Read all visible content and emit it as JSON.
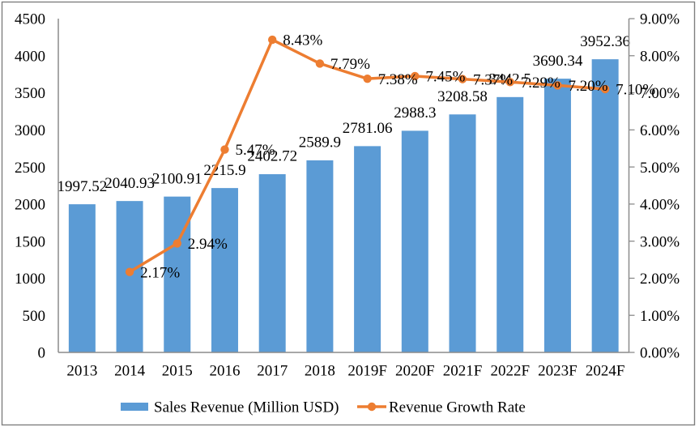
{
  "chart_data": {
    "type": "bar",
    "subtype": "combo-bar-line",
    "title": "",
    "categories": [
      "2013",
      "2014",
      "2015",
      "2016",
      "2017",
      "2018",
      "2019F",
      "2020F",
      "2021F",
      "2022F",
      "2023F",
      "2024F"
    ],
    "series": [
      {
        "name": "Sales Revenue (Million USD)",
        "type": "bar",
        "axis": "left",
        "color": "#5B9BD5",
        "values": [
          1997.52,
          2040.93,
          2100.91,
          2215.9,
          2402.72,
          2589.9,
          2781.06,
          2988.3,
          3208.58,
          3442.5,
          3690.34,
          3952.36
        ],
        "labels": [
          "1997.52",
          "2040.93",
          "2100.91",
          "2215.9",
          "2402.72",
          "2589.9",
          "2781.06",
          "2988.3",
          "3208.58",
          "3442.5",
          "3690.34",
          "3952.36"
        ]
      },
      {
        "name": "Revenue Growth Rate",
        "type": "line",
        "axis": "right",
        "color": "#ED7D31",
        "values": [
          null,
          2.17,
          2.94,
          5.47,
          8.43,
          7.79,
          7.38,
          7.45,
          7.37,
          7.29,
          7.2,
          7.1
        ],
        "labels": [
          null,
          "2.17%",
          "2.94%",
          "5.47%",
          "8.43%",
          "7.79%",
          "7.38%",
          "7.45%",
          "7.37%",
          "7.29%",
          "7.20%",
          "7.10%"
        ]
      }
    ],
    "left_axis": {
      "min": 0,
      "max": 4500,
      "step": 500,
      "tick_labels": [
        "0",
        "500",
        "1000",
        "1500",
        "2000",
        "2500",
        "3000",
        "3500",
        "4000",
        "4500"
      ]
    },
    "right_axis": {
      "min": 0,
      "max": 9,
      "step": 1,
      "tick_labels": [
        "0.00%",
        "1.00%",
        "2.00%",
        "3.00%",
        "4.00%",
        "5.00%",
        "6.00%",
        "7.00%",
        "8.00%",
        "9.00%"
      ]
    },
    "legend": {
      "position": "bottom",
      "entries": [
        {
          "label": "Sales Revenue (Million USD)",
          "marker": "rect",
          "color": "#5B9BD5"
        },
        {
          "label": "Revenue Growth Rate",
          "marker": "line-dot",
          "color": "#ED7D31"
        }
      ]
    },
    "grid": false
  },
  "colors": {
    "bar": "#5B9BD5",
    "line": "#ED7D31",
    "axis": "#8C8C8C",
    "text": "#000000",
    "border": "#7F7F7F",
    "background": "#FFFFFF"
  }
}
